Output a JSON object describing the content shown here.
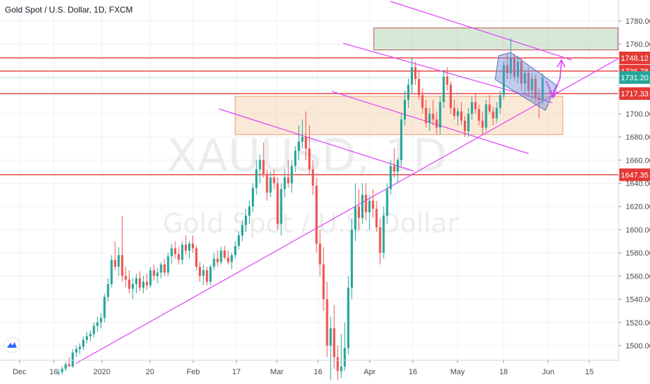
{
  "header": {
    "title": "Gold Spot / U.S. Dollar, 1D, FXCM"
  },
  "watermark": {
    "symbol": "XAUUSD, 1D",
    "name": "Gold Spot / U.S. Dollar"
  },
  "colors": {
    "up": "#26a69a",
    "down": "#ef5350",
    "resistance": "#e53935",
    "channel": "#e040fb",
    "last_price": "#26a69a",
    "grid": "#eef0f3"
  },
  "icons": {
    "logo": "tradingview-logo-icon"
  },
  "chart_data": {
    "type": "candlestick",
    "title": "Gold Spot / U.S. Dollar, 1D, FXCM",
    "x_tick_labels": [
      "Dec",
      "16",
      "2020",
      "20",
      "Feb",
      "17",
      "Mar",
      "16",
      "Apr",
      "16",
      "May",
      "18",
      "Jun",
      "15"
    ],
    "y_ticks": [
      1500,
      1520,
      1540,
      1560,
      1580,
      1600,
      1620,
      1640,
      1660,
      1680,
      1700,
      1720,
      1740,
      1760,
      1780
    ],
    "ylim": [
      1484,
      1792
    ],
    "grid": true,
    "horizontal_levels": [
      {
        "label": "1748.12",
        "value": 1748.12,
        "color": "#e53935"
      },
      {
        "label": "1736.78",
        "value": 1736.78,
        "color": "#e53935"
      },
      {
        "label": "1717.33",
        "value": 1717.33,
        "color": "#e53935"
      },
      {
        "label": "1647.35",
        "value": 1647.35,
        "color": "#e53935"
      }
    ],
    "last_price": {
      "label": "1731.20",
      "value": 1731.2,
      "color": "#26a69a"
    },
    "zones": [
      {
        "type": "resistance",
        "from": 1755,
        "to": 1774,
        "color": "#8fbc8f"
      },
      {
        "type": "support",
        "from": 1682,
        "to": 1715,
        "color": "#f5c89a"
      }
    ],
    "candles": [
      [
        1476,
        1480,
        1474,
        1477
      ],
      [
        1477,
        1482,
        1475,
        1480
      ],
      [
        1480,
        1486,
        1478,
        1484
      ],
      [
        1484,
        1490,
        1482,
        1482
      ],
      [
        1482,
        1497,
        1481,
        1494
      ],
      [
        1494,
        1500,
        1490,
        1497
      ],
      [
        1497,
        1502,
        1493,
        1499
      ],
      [
        1499,
        1508,
        1496,
        1505
      ],
      [
        1505,
        1512,
        1502,
        1508
      ],
      [
        1508,
        1513,
        1504,
        1510
      ],
      [
        1510,
        1520,
        1507,
        1517
      ],
      [
        1517,
        1525,
        1512,
        1520
      ],
      [
        1520,
        1528,
        1515,
        1524
      ],
      [
        1524,
        1545,
        1520,
        1542
      ],
      [
        1542,
        1558,
        1538,
        1553
      ],
      [
        1553,
        1578,
        1550,
        1574
      ],
      [
        1574,
        1590,
        1565,
        1568
      ],
      [
        1568,
        1585,
        1560,
        1578
      ],
      [
        1578,
        1612,
        1555,
        1560
      ],
      [
        1560,
        1568,
        1550,
        1557
      ],
      [
        1557,
        1565,
        1545,
        1549
      ],
      [
        1549,
        1558,
        1540,
        1553
      ],
      [
        1553,
        1562,
        1545,
        1558
      ],
      [
        1558,
        1564,
        1547,
        1550
      ],
      [
        1550,
        1560,
        1545,
        1555
      ],
      [
        1555,
        1562,
        1548,
        1552
      ],
      [
        1552,
        1568,
        1550,
        1565
      ],
      [
        1565,
        1570,
        1556,
        1560
      ],
      [
        1560,
        1567,
        1554,
        1563
      ],
      [
        1563,
        1572,
        1558,
        1570
      ],
      [
        1570,
        1575,
        1560,
        1563
      ],
      [
        1563,
        1580,
        1560,
        1577
      ],
      [
        1577,
        1588,
        1570,
        1584
      ],
      [
        1584,
        1590,
        1575,
        1579
      ],
      [
        1579,
        1585,
        1570,
        1574
      ],
      [
        1574,
        1590,
        1570,
        1587
      ],
      [
        1587,
        1595,
        1578,
        1582
      ],
      [
        1582,
        1590,
        1575,
        1588
      ],
      [
        1588,
        1595,
        1580,
        1584
      ],
      [
        1584,
        1586,
        1565,
        1568
      ],
      [
        1568,
        1572,
        1555,
        1560
      ],
      [
        1560,
        1570,
        1552,
        1565
      ],
      [
        1565,
        1568,
        1552,
        1555
      ],
      [
        1555,
        1570,
        1552,
        1568
      ],
      [
        1568,
        1580,
        1565,
        1575
      ],
      [
        1575,
        1582,
        1568,
        1572
      ],
      [
        1572,
        1585,
        1570,
        1582
      ],
      [
        1582,
        1586,
        1574,
        1576
      ],
      [
        1576,
        1582,
        1570,
        1572
      ],
      [
        1572,
        1580,
        1566,
        1578
      ],
      [
        1578,
        1590,
        1575,
        1586
      ],
      [
        1586,
        1598,
        1583,
        1595
      ],
      [
        1595,
        1608,
        1590,
        1604
      ],
      [
        1604,
        1618,
        1598,
        1612
      ],
      [
        1612,
        1625,
        1605,
        1620
      ],
      [
        1620,
        1640,
        1615,
        1636
      ],
      [
        1636,
        1660,
        1630,
        1652
      ],
      [
        1652,
        1665,
        1640,
        1660
      ],
      [
        1660,
        1675,
        1645,
        1648
      ],
      [
        1648,
        1652,
        1625,
        1632
      ],
      [
        1632,
        1650,
        1628,
        1645
      ],
      [
        1645,
        1652,
        1635,
        1640
      ],
      [
        1640,
        1645,
        1600,
        1605
      ],
      [
        1605,
        1640,
        1595,
        1635
      ],
      [
        1635,
        1652,
        1628,
        1645
      ],
      [
        1645,
        1660,
        1636,
        1640
      ],
      [
        1640,
        1660,
        1632,
        1655
      ],
      [
        1655,
        1672,
        1650,
        1668
      ],
      [
        1668,
        1690,
        1660,
        1676
      ],
      [
        1676,
        1695,
        1670,
        1680
      ],
      [
        1680,
        1702,
        1660,
        1670
      ],
      [
        1670,
        1690,
        1648,
        1652
      ],
      [
        1652,
        1660,
        1630,
        1638
      ],
      [
        1638,
        1645,
        1580,
        1588
      ],
      [
        1588,
        1600,
        1560,
        1570
      ],
      [
        1570,
        1585,
        1530,
        1540
      ],
      [
        1540,
        1555,
        1490,
        1500
      ],
      [
        1500,
        1525,
        1470,
        1515
      ],
      [
        1515,
        1535,
        1480,
        1490
      ],
      [
        1490,
        1500,
        1470,
        1478
      ],
      [
        1478,
        1510,
        1472,
        1482
      ],
      [
        1482,
        1520,
        1478,
        1498
      ],
      [
        1498,
        1560,
        1492,
        1550
      ],
      [
        1550,
        1610,
        1540,
        1600
      ],
      [
        1600,
        1640,
        1590,
        1620
      ],
      [
        1620,
        1635,
        1600,
        1610
      ],
      [
        1610,
        1640,
        1605,
        1630
      ],
      [
        1630,
        1640,
        1608,
        1615
      ],
      [
        1615,
        1630,
        1600,
        1625
      ],
      [
        1625,
        1635,
        1610,
        1618
      ],
      [
        1618,
        1625,
        1598,
        1602
      ],
      [
        1602,
        1610,
        1570,
        1580
      ],
      [
        1580,
        1620,
        1575,
        1612
      ],
      [
        1612,
        1640,
        1605,
        1635
      ],
      [
        1635,
        1660,
        1630,
        1655
      ],
      [
        1655,
        1670,
        1645,
        1650
      ],
      [
        1650,
        1662,
        1640,
        1660
      ],
      [
        1660,
        1700,
        1655,
        1695
      ],
      [
        1695,
        1720,
        1690,
        1712
      ],
      [
        1712,
        1730,
        1705,
        1725
      ],
      [
        1725,
        1748,
        1718,
        1740
      ],
      [
        1740,
        1745,
        1725,
        1730
      ],
      [
        1730,
        1738,
        1712,
        1716
      ],
      [
        1716,
        1722,
        1700,
        1705
      ],
      [
        1705,
        1712,
        1688,
        1692
      ],
      [
        1692,
        1705,
        1685,
        1700
      ],
      [
        1700,
        1712,
        1690,
        1695
      ],
      [
        1695,
        1702,
        1682,
        1688
      ],
      [
        1688,
        1715,
        1682,
        1710
      ],
      [
        1710,
        1738,
        1705,
        1732
      ],
      [
        1732,
        1740,
        1720,
        1725
      ],
      [
        1725,
        1728,
        1700,
        1705
      ],
      [
        1705,
        1712,
        1695,
        1698
      ],
      [
        1698,
        1705,
        1690,
        1702
      ],
      [
        1702,
        1710,
        1690,
        1694
      ],
      [
        1694,
        1698,
        1680,
        1685
      ],
      [
        1685,
        1705,
        1680,
        1700
      ],
      [
        1700,
        1715,
        1695,
        1710
      ],
      [
        1710,
        1718,
        1700,
        1704
      ],
      [
        1704,
        1708,
        1690,
        1694
      ],
      [
        1694,
        1702,
        1682,
        1688
      ],
      [
        1688,
        1712,
        1685,
        1708
      ],
      [
        1708,
        1716,
        1700,
        1702
      ],
      [
        1702,
        1706,
        1690,
        1696
      ],
      [
        1696,
        1710,
        1692,
        1705
      ],
      [
        1705,
        1720,
        1700,
        1716
      ],
      [
        1716,
        1745,
        1712,
        1742
      ],
      [
        1742,
        1752,
        1730,
        1735
      ],
      [
        1735,
        1765,
        1730,
        1748
      ],
      [
        1748,
        1752,
        1728,
        1732
      ],
      [
        1732,
        1750,
        1726,
        1745
      ],
      [
        1745,
        1748,
        1720,
        1726
      ],
      [
        1726,
        1738,
        1718,
        1735
      ],
      [
        1735,
        1740,
        1715,
        1720
      ],
      [
        1720,
        1735,
        1712,
        1730
      ],
      [
        1730,
        1734,
        1710,
        1714
      ],
      [
        1714,
        1722,
        1696,
        1712
      ],
      [
        1712,
        1735,
        1708,
        1731
      ]
    ]
  }
}
